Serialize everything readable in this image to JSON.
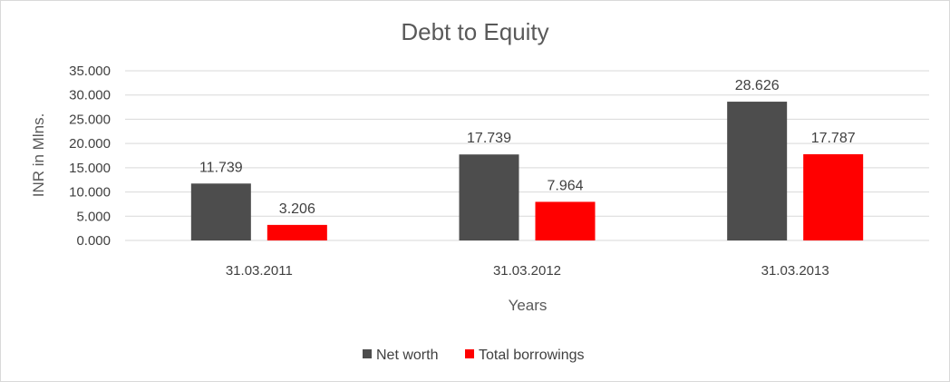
{
  "chart_data": {
    "type": "bar",
    "title": "Debt to Equity",
    "xlabel": "Years",
    "ylabel": "INR in Mlns.",
    "categories": [
      "31.03.2011",
      "31.03.2012",
      "31.03.2013"
    ],
    "series": [
      {
        "name": "Net worth",
        "values": [
          11.739,
          17.739,
          28.626
        ],
        "labels": [
          "11.739",
          "17.739",
          "28.626"
        ],
        "color": "#4d4d4d"
      },
      {
        "name": "Total borrowings",
        "values": [
          3.206,
          7.964,
          17.787
        ],
        "labels": [
          "3.206",
          "7.964",
          "17.787"
        ],
        "color": "#ff0000"
      }
    ],
    "ylim": [
      0,
      35
    ],
    "yticks": [
      "0.000",
      "5.000",
      "10.000",
      "15.000",
      "20.000",
      "25.000",
      "30.000",
      "35.000"
    ],
    "grid": true,
    "legend_position": "bottom"
  }
}
